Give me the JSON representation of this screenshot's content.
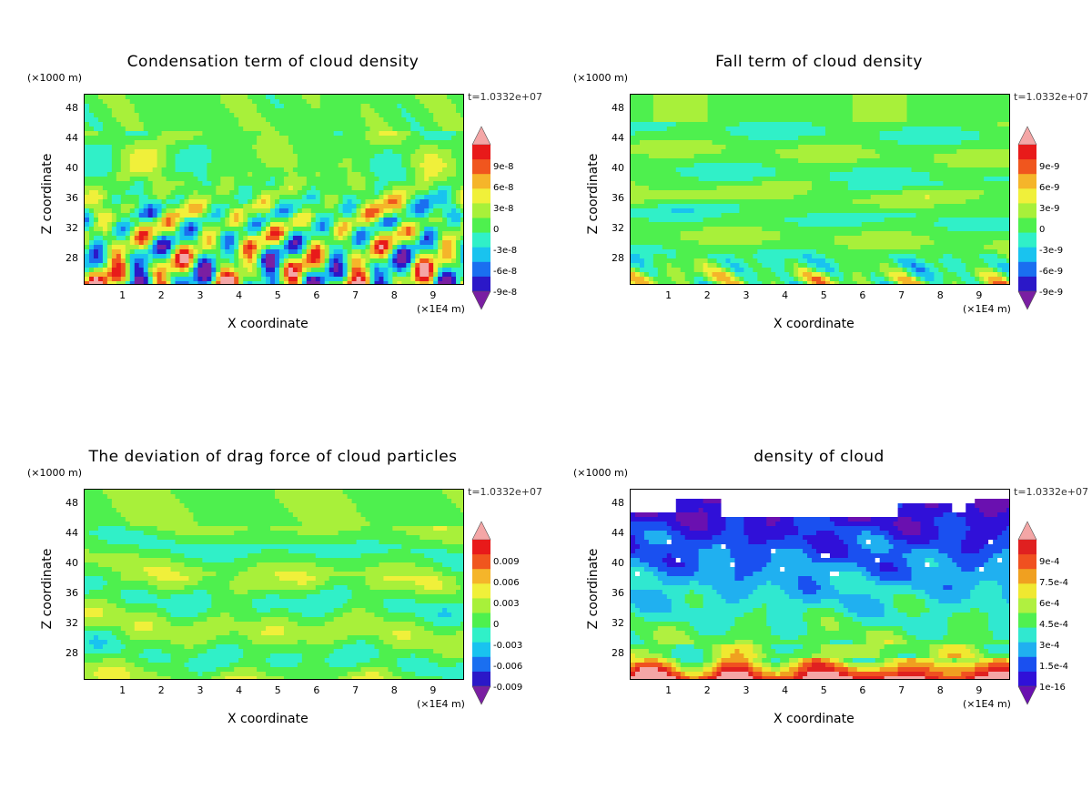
{
  "time_label": "t=1.0332e+07",
  "z_unit": "(×1000 m)",
  "x_unit": "(×1E4 m)",
  "x_label": "X coordinate",
  "y_label": "Z coordinate",
  "chart_data": [
    {
      "type": "heatmap",
      "title": "Condensation term of cloud density",
      "xlabel": "X coordinate",
      "ylabel": "Z coordinate",
      "x_ticks": [
        "1",
        "2",
        "3",
        "4",
        "5",
        "6",
        "7",
        "8",
        "9"
      ],
      "y_ticks": [
        "28",
        "32",
        "36",
        "40",
        "44",
        "48"
      ],
      "xlim": [
        0,
        9.8
      ],
      "ylim": [
        24.5,
        50
      ],
      "colorbar_labels": [
        "9e-8",
        "6e-8",
        "3e-8",
        "0",
        "-3e-8",
        "-6e-8",
        "-9e-8"
      ],
      "pattern": "condensation"
    },
    {
      "type": "heatmap",
      "title": "Fall term of cloud density",
      "xlabel": "X coordinate",
      "ylabel": "Z coordinate",
      "x_ticks": [
        "1",
        "2",
        "3",
        "4",
        "5",
        "6",
        "7",
        "8",
        "9"
      ],
      "y_ticks": [
        "28",
        "32",
        "36",
        "40",
        "44",
        "48"
      ],
      "xlim": [
        0,
        9.8
      ],
      "ylim": [
        24.5,
        50
      ],
      "colorbar_labels": [
        "9e-9",
        "6e-9",
        "3e-9",
        "0",
        "-3e-9",
        "-6e-9",
        "-9e-9"
      ],
      "pattern": "fall"
    },
    {
      "type": "heatmap",
      "title": "The deviation of drag force of cloud particles",
      "xlabel": "X coordinate",
      "ylabel": "Z coordinate",
      "x_ticks": [
        "1",
        "2",
        "3",
        "4",
        "5",
        "6",
        "7",
        "8",
        "9"
      ],
      "y_ticks": [
        "28",
        "32",
        "36",
        "40",
        "44",
        "48"
      ],
      "xlim": [
        0,
        9.8
      ],
      "ylim": [
        24.5,
        50
      ],
      "colorbar_labels": [
        "0.009",
        "0.006",
        "0.003",
        "0",
        "-0.003",
        "-0.006",
        "-0.009"
      ],
      "pattern": "drag"
    },
    {
      "type": "heatmap",
      "title": "density of cloud",
      "xlabel": "X coordinate",
      "ylabel": "Z coordinate",
      "x_ticks": [
        "1",
        "2",
        "3",
        "4",
        "5",
        "6",
        "7",
        "8",
        "9"
      ],
      "y_ticks": [
        "28",
        "32",
        "36",
        "40",
        "44",
        "48"
      ],
      "xlim": [
        0,
        9.8
      ],
      "ylim": [
        24.5,
        50
      ],
      "colorbar_labels": [
        "9e-4",
        "7.5e-4",
        "6e-4",
        "4.5e-4",
        "3e-4",
        "1.5e-4",
        "1e-16"
      ],
      "pattern": "density"
    }
  ]
}
